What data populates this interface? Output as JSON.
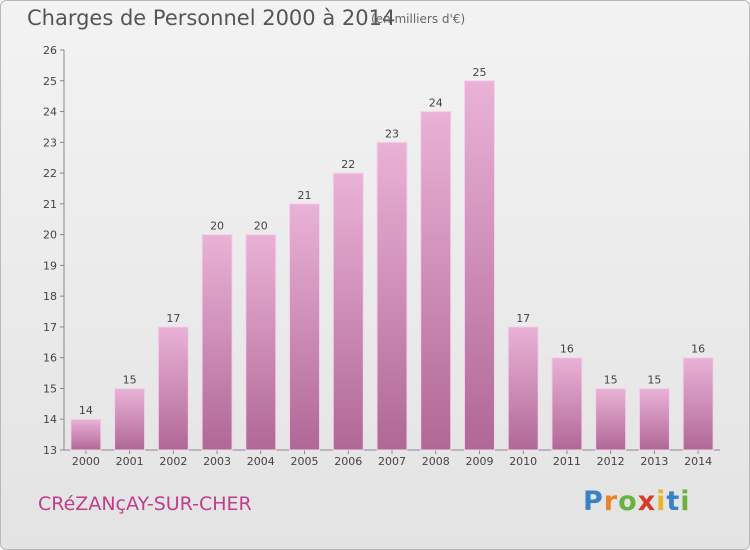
{
  "title": "Charges de Personnel 2000 à 2014",
  "subtitle": "(en milliers d'€)",
  "commune": "CRéZANçAY-SUR-CHER",
  "logo": {
    "letters": [
      "P",
      "r",
      "o",
      "x",
      "i",
      "t",
      "i"
    ],
    "colors": [
      "#3a82c8",
      "#e8832a",
      "#6ab23f",
      "#d63a2c",
      "#e8b62a",
      "#3a82c8",
      "#6ab23f"
    ]
  },
  "colors": {
    "bar_light": "#eab2d7",
    "bar_dark": "#b06896",
    "bar_edge": "#f5d3ea"
  },
  "chart_data": {
    "type": "bar",
    "categories": [
      "2000",
      "2001",
      "2002",
      "2003",
      "2004",
      "2005",
      "2006",
      "2007",
      "2008",
      "2009",
      "2010",
      "2011",
      "2012",
      "2013",
      "2014"
    ],
    "values": [
      14,
      15,
      17,
      20,
      20,
      21,
      22,
      23,
      24,
      25,
      17,
      16,
      15,
      15,
      16
    ],
    "title": "Charges de Personnel 2000 à 2014",
    "subtitle": "(en milliers d'€)",
    "xlabel": "",
    "ylabel": "",
    "ylim": [
      13,
      26
    ],
    "yticks": [
      13,
      14,
      15,
      16,
      17,
      18,
      19,
      20,
      21,
      22,
      23,
      24,
      25,
      26
    ],
    "grid": false
  }
}
